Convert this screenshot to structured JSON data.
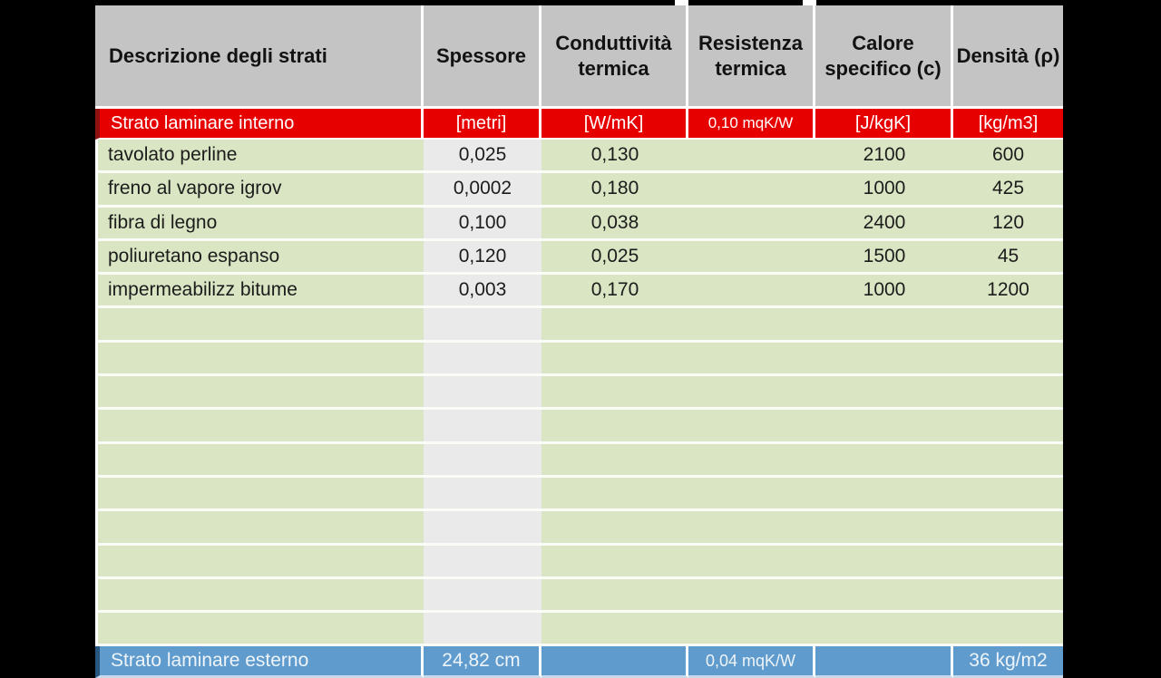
{
  "table": {
    "headers": [
      "Descrizione degli strati",
      "Spessore",
      "Conduttività termica",
      "Resistenza termica",
      "Calore specifico (c)",
      "Densità (ρ)"
    ],
    "units_row": {
      "label": "Strato laminare interno",
      "spessore": "[metri]",
      "conduttivita": "[W/mK]",
      "resistenza": "0,10 mqK/W",
      "calore": "[J/kgK]",
      "densita": "[kg/m3]"
    },
    "rows": [
      {
        "descrizione": "tavolato perline",
        "spessore": "0,025",
        "conduttivita": "0,130",
        "resistenza": "",
        "calore": "2100",
        "densita": "600"
      },
      {
        "descrizione": "freno al vapore igrov",
        "spessore": "0,0002",
        "conduttivita": "0,180",
        "resistenza": "",
        "calore": "1000",
        "densita": "425"
      },
      {
        "descrizione": "fibra di legno",
        "spessore": "0,100",
        "conduttivita": "0,038",
        "resistenza": "",
        "calore": "2400",
        "densita": "120"
      },
      {
        "descrizione": "poliuretano espanso",
        "spessore": "0,120",
        "conduttivita": "0,025",
        "resistenza": "",
        "calore": "1500",
        "densita": "45"
      },
      {
        "descrizione": "impermeabilizz bitume",
        "spessore": "0,003",
        "conduttivita": "0,170",
        "resistenza": "",
        "calore": "1000",
        "densita": "1200"
      }
    ],
    "empty_row_count": 10,
    "footer_row": {
      "label": "Strato laminare esterno",
      "spessore": "24,82 cm",
      "conduttivita": "",
      "resistenza": "0,04 mqK/W",
      "calore": "",
      "densita": "36 kg/m2"
    }
  },
  "colors": {
    "letterbox": "#000000",
    "header_bg": "#c4c4c4",
    "units_row_bg": "#e60000",
    "units_row_accent": "#8e1111",
    "row_green": "#d9e5c3",
    "spessore_col_gray": "#eaeaea",
    "footer_bg": "#5f9bcd",
    "footer_accent": "#27577f",
    "separator": "#ffffff"
  }
}
